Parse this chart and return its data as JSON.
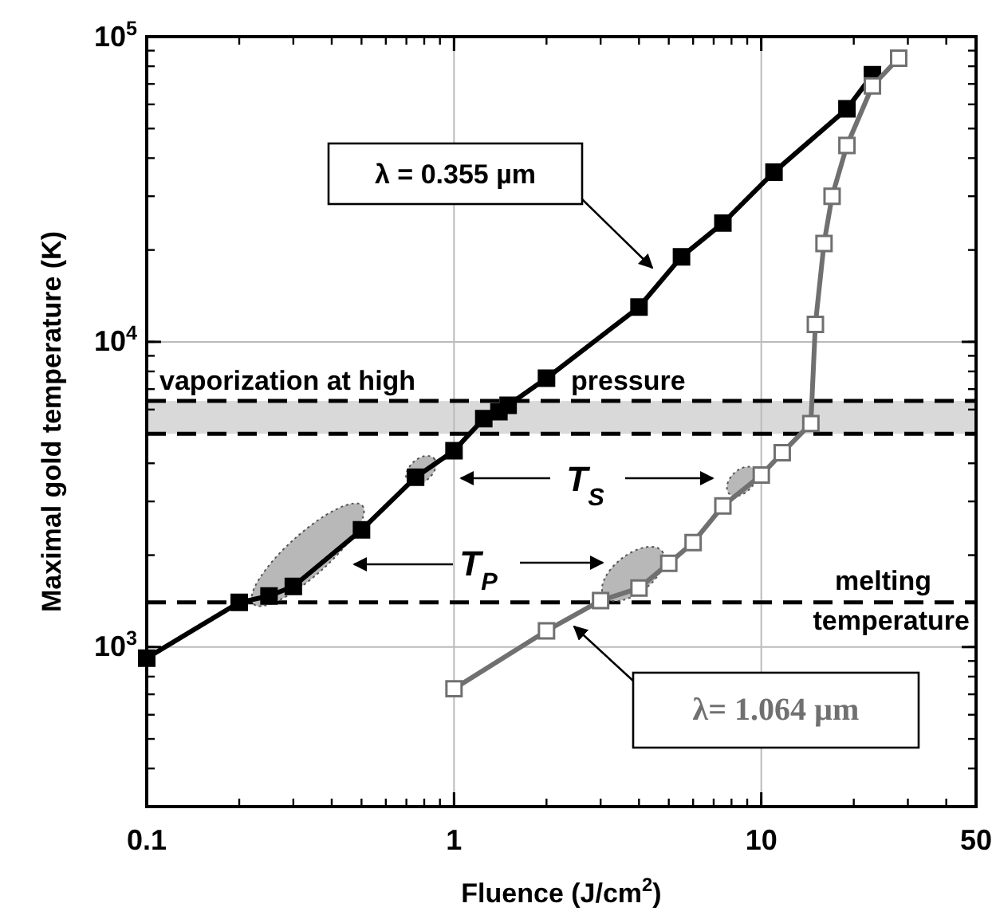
{
  "chart_data": {
    "type": "line",
    "xlabel": "Fluence (J/cm$^{2}$)",
    "ylabel": "Maximal gold temperature (K)",
    "log": "xy",
    "grid": true,
    "marker": "square",
    "line_style": "solid",
    "xlim": [
      0.1,
      50
    ],
    "xticks": [
      0.1,
      1,
      10,
      50
    ],
    "ylim": [
      300,
      100000
    ],
    "yticks": [
      {
        "value": 1000,
        "label": "10$^{3}$"
      },
      {
        "value": 10000,
        "label": "10$^{4}$"
      },
      {
        "value": 100000,
        "label": "10$^{5}$"
      }
    ],
    "series": [
      {
        "name": "λ = 0.355 µm",
        "color": "#000000",
        "x": [
          0.1,
          0.2,
          0.25,
          0.3,
          0.5,
          0.75,
          1,
          1.25,
          1.4,
          1.5,
          2,
          4,
          5.5,
          7.5,
          11,
          19,
          23
        ],
        "values": [
          920,
          1400,
          1470,
          1580,
          2420,
          3600,
          4400,
          5600,
          5900,
          6200,
          7600,
          13000,
          19000,
          24500,
          36000,
          58000,
          75000
        ]
      },
      {
        "name": "λ= 1.064 µm",
        "color": "#707070",
        "x": [
          1,
          2,
          3,
          4,
          5,
          6,
          7.5,
          10,
          11.7,
          14.5,
          15,
          16,
          17,
          19,
          23,
          28
        ],
        "values": [
          730,
          1130,
          1420,
          1560,
          1880,
          2200,
          2900,
          3660,
          4330,
          5400,
          11400,
          21000,
          30000,
          44000,
          69000,
          85000
        ]
      }
    ],
    "bands": [
      {
        "axis": "y",
        "from": 5000,
        "to": 6400,
        "label": "vaporization at high pressure",
        "color": "#d9d9d9"
      }
    ],
    "ref_lines": [
      {
        "axis": "y",
        "value": 6400,
        "line_style": "dashed"
      },
      {
        "axis": "y",
        "value": 5000,
        "line_style": "dashed"
      },
      {
        "axis": "y",
        "value": 1400,
        "label": "melting temperature",
        "line_style": "dashed"
      }
    ],
    "annotations": [
      "T$_{S}$",
      "T$_{P}$"
    ]
  }
}
